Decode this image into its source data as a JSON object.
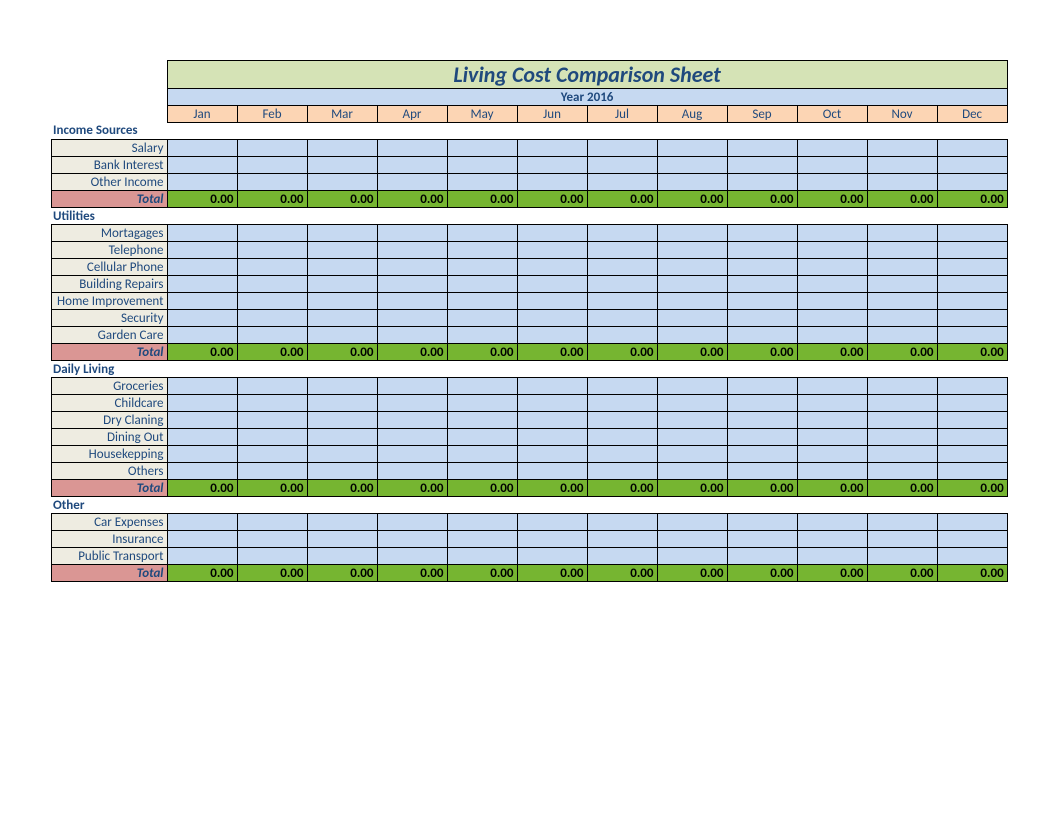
{
  "title": "Living Cost Comparison Sheet",
  "year_label": "Year 2016",
  "months": [
    "Jan",
    "Feb",
    "Mar",
    "Apr",
    "May",
    "Jun",
    "Jul",
    "Aug",
    "Sep",
    "Oct",
    "Nov",
    "Dec"
  ],
  "total_label": "Total",
  "total_value": "0.00",
  "colors": {
    "title_bg": "#d5e3b6",
    "title_text": "#1f497d",
    "year_bg": "#c6d9f1",
    "year_text": "#1f497d",
    "month_bg": "#fcd5b4",
    "month_text": "#1f497d",
    "section_text": "#1f497d",
    "label_bg": "#eeece1",
    "label_text": "#1f497d",
    "data_bg": "#c6d9f1",
    "total_label_bg": "#da9694",
    "total_label_text": "#1f497d",
    "total_row_bg": "#76b531",
    "total_val_text": "#000000",
    "border": "#000000"
  },
  "sections": [
    {
      "name": "Income Sources",
      "rows": [
        "Salary",
        "Bank Interest",
        "Other Income"
      ]
    },
    {
      "name": "Utilities",
      "rows": [
        "Mortagages",
        "Telephone",
        "Cellular Phone",
        "Building Repairs",
        "Home Improvement",
        "Security",
        "Garden Care"
      ]
    },
    {
      "name": "Daily Living",
      "rows": [
        "Groceries",
        "Childcare",
        "Dry Claning",
        "Dining Out",
        "Housekepping",
        "Others"
      ]
    },
    {
      "name": "Other",
      "rows": [
        "Car Expenses",
        "Insurance",
        "Public Transport"
      ]
    }
  ]
}
